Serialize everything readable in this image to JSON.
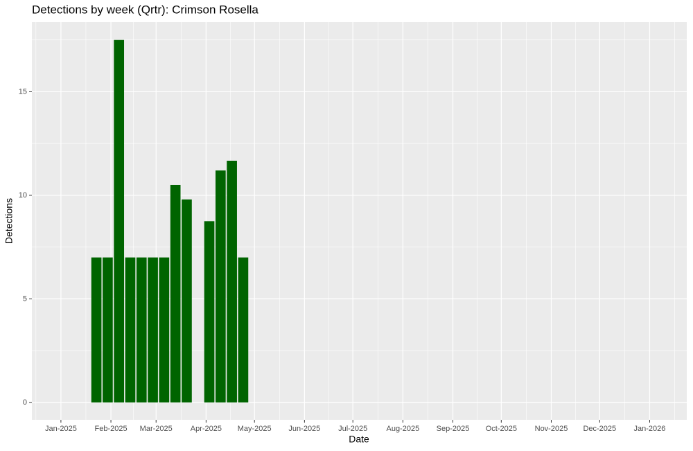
{
  "chart_data": {
    "type": "bar",
    "title": "Detections by week (Qrtr): Crimson Rosella",
    "x_label": "Date",
    "y_label": "Detections",
    "x": [
      "2025-01-23",
      "2025-01-30",
      "2025-02-06",
      "2025-02-13",
      "2025-02-20",
      "2025-02-27",
      "2025-03-06",
      "2025-03-13",
      "2025-03-20",
      "2025-04-03",
      "2025-04-10",
      "2025-04-17",
      "2025-04-24"
    ],
    "values": [
      7,
      7,
      17.5,
      7,
      7,
      7,
      7,
      10.5,
      9.8,
      8.75,
      11.2,
      11.67,
      7
    ],
    "color": "#006400",
    "xlim": [
      "2024-12-14",
      "2026-01-24"
    ],
    "xticks": [
      {
        "value": "2025-01-01",
        "label": "Jan-2025"
      },
      {
        "value": "2025-02-01",
        "label": "Feb-2025"
      },
      {
        "value": "2025-03-01",
        "label": "Mar-2025"
      },
      {
        "value": "2025-04-01",
        "label": "Apr-2025"
      },
      {
        "value": "2025-05-01",
        "label": "May-2025"
      },
      {
        "value": "2025-06-01",
        "label": "Jun-2025"
      },
      {
        "value": "2025-07-01",
        "label": "Jul-2025"
      },
      {
        "value": "2025-08-01",
        "label": "Aug-2025"
      },
      {
        "value": "2025-09-01",
        "label": "Sep-2025"
      },
      {
        "value": "2025-10-01",
        "label": "Oct-2025"
      },
      {
        "value": "2025-11-01",
        "label": "Nov-2025"
      },
      {
        "value": "2025-12-01",
        "label": "Dec-2025"
      },
      {
        "value": "2026-01-01",
        "label": "Jan-2026"
      }
    ],
    "ylim": [
      -0.84,
      18.36
    ],
    "yticks": [
      0,
      5,
      10,
      15
    ],
    "grid": true
  }
}
